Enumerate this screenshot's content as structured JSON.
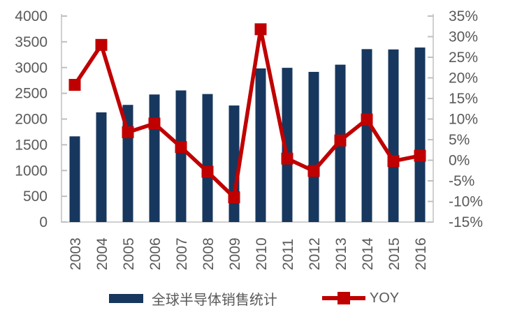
{
  "chart_data": {
    "type": "combo-bar-line",
    "categories": [
      "2003",
      "2004",
      "2005",
      "2006",
      "2007",
      "2008",
      "2009",
      "2010",
      "2011",
      "2012",
      "2013",
      "2014",
      "2015",
      "2016"
    ],
    "series": [
      {
        "name": "全球半导体销售统计",
        "type": "bar",
        "yaxis": "left",
        "color": "#17375E",
        "values": [
          1664,
          2130,
          2275,
          2477,
          2556,
          2486,
          2263,
          2983,
          2995,
          2916,
          3056,
          3358,
          3352,
          3389
        ]
      },
      {
        "name": "YOY",
        "type": "line",
        "yaxis": "right",
        "color": "#C00000",
        "marker": "square",
        "unit": "%",
        "values": [
          18.3,
          28.0,
          6.8,
          8.9,
          3.2,
          -2.8,
          -9.0,
          31.8,
          0.4,
          -2.6,
          4.8,
          9.9,
          -0.2,
          1.1
        ]
      }
    ],
    "left_axis": {
      "min": 0,
      "max": 4000,
      "step": 500,
      "tick_labels": [
        "4000",
        "3500",
        "3000",
        "2500",
        "2000",
        "1500",
        "1000",
        "500",
        "0"
      ]
    },
    "right_axis": {
      "min": -15,
      "max": 35,
      "step": 5,
      "tick_labels": [
        "35%",
        "30%",
        "25%",
        "20%",
        "15%",
        "10%",
        "5%",
        "0%",
        "-5%",
        "-10%",
        "-15%"
      ]
    },
    "title": "",
    "xlabel": "",
    "ylabel": "",
    "grid": false,
    "legend_position": "bottom",
    "axis_line_color": "#D0D0D0",
    "tick_color": "#BFBFBF",
    "label_color": "#595959",
    "background": "#FFFFFF"
  }
}
